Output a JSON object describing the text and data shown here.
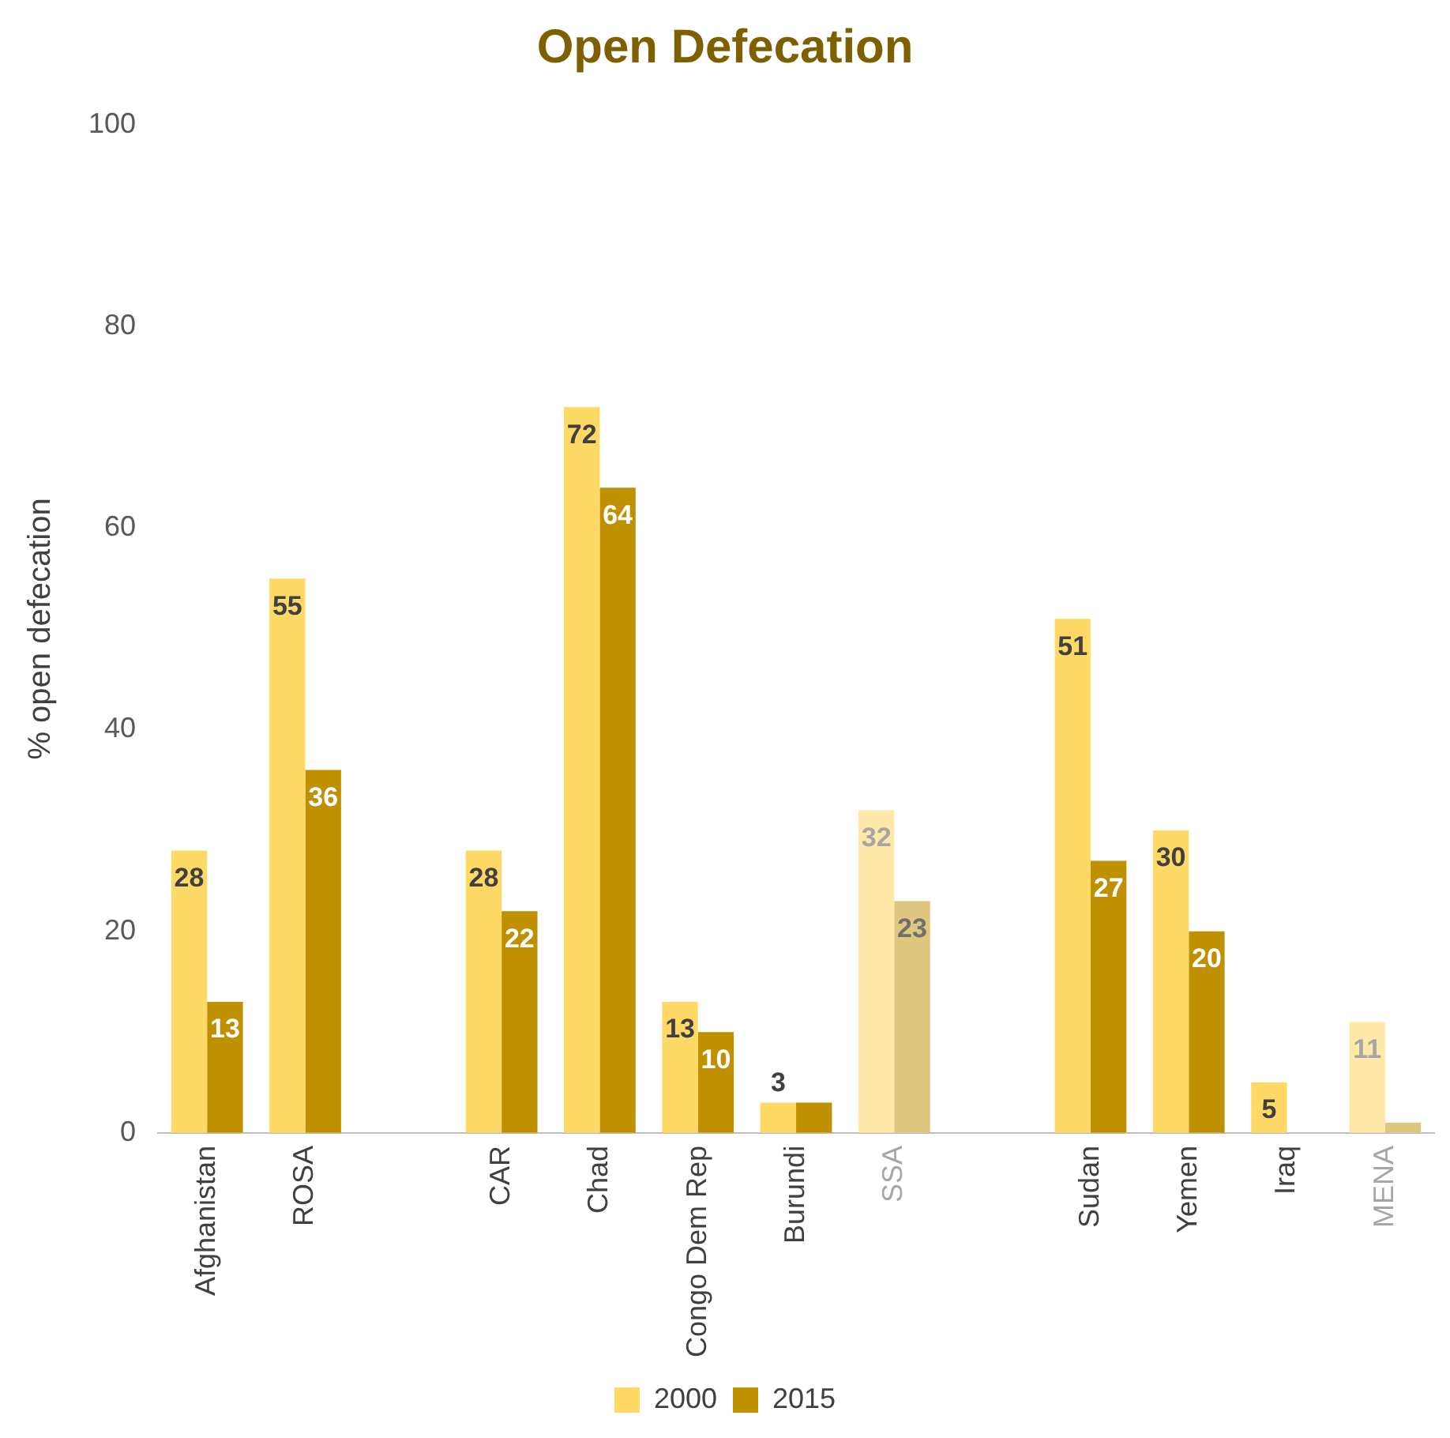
{
  "chart_data": {
    "type": "bar",
    "title": "Open Defecation",
    "ylabel": "% open defecation",
    "categories": [
      "Afghanistan",
      "ROSA",
      null,
      "CAR",
      "Chad",
      "Congo Dem Rep",
      "Burundi",
      "SSA",
      null,
      "Sudan",
      "Yemen",
      "Iraq",
      "MENA"
    ],
    "series": [
      {
        "name": "2000",
        "color": "#ffd966",
        "colors": [
          "#ffd966",
          "#ffd966",
          null,
          "#ffd966",
          "#ffd966",
          "#ffd966",
          "#ffd966",
          "#ffe8a8",
          null,
          "#ffd966",
          "#ffd966",
          "#ffd966",
          "#ffe8a8"
        ],
        "values": [
          28,
          55,
          null,
          28,
          72,
          13,
          3,
          32,
          null,
          51,
          30,
          5,
          11
        ],
        "value_labels": [
          "28",
          "55",
          null,
          "28",
          "72",
          "13",
          "3",
          "32",
          null,
          "51",
          "30",
          "5",
          "11"
        ]
      },
      {
        "name": "2015",
        "color": "#bf9000",
        "colors": [
          "#bf9000",
          "#bf9000",
          null,
          "#bf9000",
          "#bf9000",
          "#bf9000",
          "#bf9000",
          "#dfc77f",
          null,
          "#bf9000",
          "#bf9000",
          "#bf9000",
          "#dfc77f"
        ],
        "values": [
          13,
          36,
          null,
          22,
          64,
          10,
          3,
          23,
          null,
          27,
          20,
          null,
          1
        ],
        "value_labels": [
          "13",
          "36",
          null,
          "22",
          "64",
          "10",
          null,
          "23",
          null,
          "27",
          "20",
          null,
          null
        ]
      }
    ],
    "ylim": [
      0,
      100
    ],
    "yticks": [
      0,
      20,
      40,
      60,
      80,
      100
    ],
    "grid": false,
    "legend": "bottom"
  }
}
